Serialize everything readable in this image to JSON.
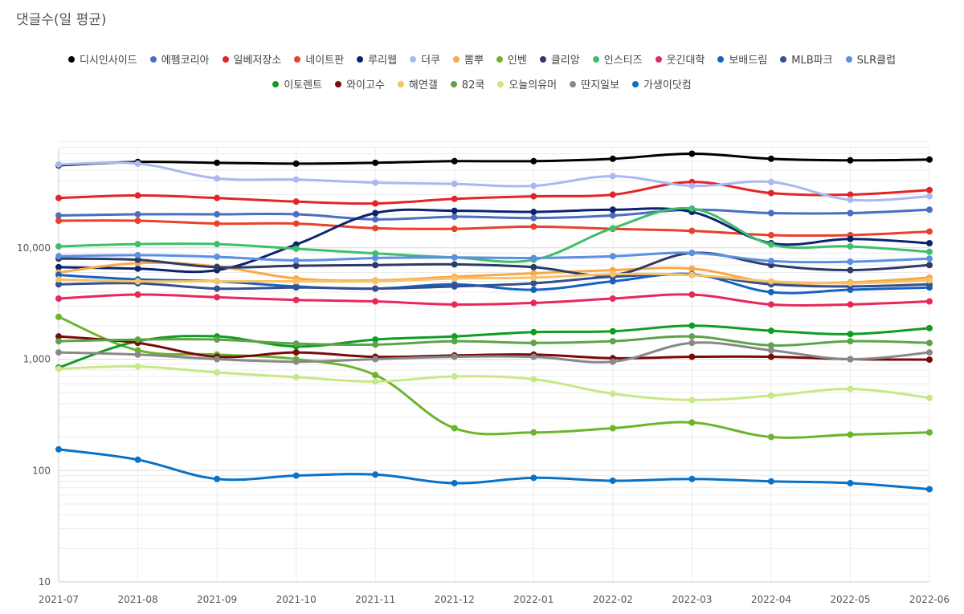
{
  "chart_data": {
    "type": "line",
    "title": "댓글수(일 평균)",
    "xlabel": "",
    "ylabel": "",
    "yscale": "log",
    "ylim": [
      10,
      100000
    ],
    "yticks": [
      {
        "value": 10,
        "label": "10"
      },
      {
        "value": 100,
        "label": "100"
      },
      {
        "value": 1000,
        "label": "1,000"
      },
      {
        "value": 10000,
        "label": "10,000"
      }
    ],
    "grid": true,
    "legend_position": "top",
    "categories": [
      "2021-07",
      "2021-08",
      "2021-09",
      "2021-10",
      "2021-11",
      "2021-12",
      "2022-01",
      "2022-02",
      "2022-03",
      "2022-04",
      "2022-05",
      "2022-06"
    ],
    "series": [
      {
        "name": "디시인사이드",
        "color": "#000000",
        "values": [
          55000,
          59000,
          58000,
          57000,
          58000,
          60000,
          60000,
          63000,
          70000,
          63000,
          61000,
          62000
        ]
      },
      {
        "name": "에펨코리아",
        "color": "#4a6fbf",
        "values": [
          19500,
          20000,
          20000,
          20000,
          18000,
          19000,
          18500,
          19500,
          22000,
          20500,
          20500,
          22000
        ]
      },
      {
        "name": "일베저장소",
        "color": "#e32428",
        "values": [
          28000,
          29500,
          28000,
          26000,
          25000,
          27500,
          29000,
          30000,
          39000,
          31000,
          30000,
          33000
        ]
      },
      {
        "name": "네이트판",
        "color": "#e8412c",
        "values": [
          17500,
          17500,
          16500,
          16500,
          15000,
          14800,
          15500,
          14800,
          14200,
          13000,
          13000,
          14000
        ]
      },
      {
        "name": "루리웹",
        "color": "#0c2470",
        "values": [
          6700,
          6500,
          6300,
          10700,
          20500,
          21500,
          21000,
          22000,
          21000,
          11000,
          12000,
          11000
        ]
      },
      {
        "name": "더쿠",
        "color": "#a9b8f0",
        "values": [
          56000,
          57000,
          42000,
          41000,
          38500,
          37500,
          36000,
          44000,
          36000,
          39000,
          27000,
          29000
        ]
      },
      {
        "name": "뽐뿌",
        "color": "#f7a947",
        "values": [
          6000,
          7300,
          6800,
          5300,
          5100,
          5500,
          5900,
          6300,
          6500,
          4900,
          4900,
          5400
        ]
      },
      {
        "name": "인벤",
        "color": "#6cb42c",
        "values": [
          2400,
          1200,
          1100,
          1000,
          720,
          240,
          220,
          240,
          270,
          200,
          210,
          220
        ]
      },
      {
        "name": "클리앙",
        "color": "#2d3b66",
        "values": [
          8000,
          7800,
          6700,
          6900,
          7000,
          7100,
          6700,
          5700,
          9000,
          7000,
          6300,
          7000
        ]
      },
      {
        "name": "인스티즈",
        "color": "#3fbf6a",
        "values": [
          10300,
          10800,
          10800,
          9800,
          8900,
          8200,
          7800,
          15000,
          22500,
          10700,
          10300,
          9200
        ]
      },
      {
        "name": "웃긴대학",
        "color": "#e8275a",
        "values": [
          3500,
          3800,
          3600,
          3400,
          3300,
          3100,
          3200,
          3500,
          3800,
          3100,
          3100,
          3300
        ]
      },
      {
        "name": "보배드림",
        "color": "#1662c2",
        "values": [
          5700,
          5200,
          5000,
          4500,
          4300,
          4700,
          4200,
          5000,
          5800,
          4000,
          4200,
          4400
        ]
      },
      {
        "name": "MLB파크",
        "color": "#34508f",
        "values": [
          4700,
          4800,
          4300,
          4400,
          4300,
          4500,
          4800,
          5500,
          5700,
          4700,
          4500,
          4700
        ]
      },
      {
        "name": "SLR클럽",
        "color": "#5b8fe0",
        "values": [
          8400,
          8600,
          8300,
          7700,
          8100,
          8200,
          8100,
          8400,
          9000,
          7600,
          7500,
          8000
        ]
      },
      {
        "name": "이토렌트",
        "color": "#0f9e22",
        "values": [
          840,
          1450,
          1600,
          1300,
          1500,
          1600,
          1750,
          1780,
          2000,
          1800,
          1680,
          1900
        ]
      },
      {
        "name": "와이고수",
        "color": "#7a0b0b",
        "values": [
          1600,
          1400,
          1050,
          1150,
          1050,
          1080,
          1100,
          1020,
          1050,
          1050,
          1000,
          990
        ]
      },
      {
        "name": "해연갤",
        "color": "#f7c26a",
        "values": [
          5200,
          5000,
          5000,
          5000,
          5000,
          5300,
          5400,
          5800,
          5700,
          5000,
          4800,
          5100
        ]
      },
      {
        "name": "82쿡",
        "color": "#5fa348",
        "values": [
          1450,
          1500,
          1500,
          1380,
          1350,
          1450,
          1400,
          1450,
          1600,
          1330,
          1450,
          1400
        ]
      },
      {
        "name": "오늘의유머",
        "color": "#c8e886",
        "values": [
          820,
          860,
          760,
          690,
          630,
          700,
          660,
          490,
          430,
          470,
          540,
          450
        ]
      },
      {
        "name": "딴지일보",
        "color": "#888888",
        "values": [
          1150,
          1100,
          1000,
          950,
          1000,
          1050,
          1050,
          950,
          1400,
          1200,
          1000,
          1150
        ]
      },
      {
        "name": "가생이닷컴",
        "color": "#0a72c6",
        "values": [
          155,
          125,
          84,
          90,
          92,
          77,
          86,
          81,
          84,
          80,
          77,
          68
        ]
      }
    ]
  }
}
